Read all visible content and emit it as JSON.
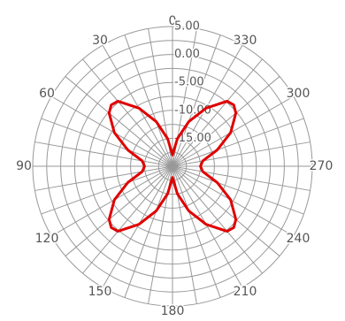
{
  "title": "",
  "chart_data": {
    "type": "polar-line",
    "title_fragment": "",
    "radial_axis": {
      "ticks": [
        "5.00",
        "0.00",
        "-5.00",
        "-10.00",
        "-15.00"
      ],
      "range": [
        -20,
        5
      ]
    },
    "angular_axis": {
      "ticks": [
        "0",
        "30",
        "60",
        "90",
        "120",
        "150",
        "180",
        "210",
        "240",
        "270",
        "300",
        "330"
      ],
      "direction": "counterclockwise",
      "zero_at": "top"
    },
    "grid": true,
    "series": [
      {
        "color": "#e00000",
        "theta": [
          0,
          10,
          20,
          30,
          40,
          45,
          50,
          60,
          70,
          80,
          90,
          100,
          110,
          120,
          130,
          135,
          140,
          150,
          160,
          170,
          180,
          190,
          200,
          210,
          220,
          225,
          230,
          240,
          250,
          260,
          270,
          280,
          290,
          300,
          310,
          315,
          320,
          330,
          340,
          350,
          360
        ],
        "r": [
          -18,
          -15,
          -11.5,
          -8,
          -4.8,
          -4.5,
          -5.2,
          -8,
          -11.5,
          -14.5,
          -15,
          -14.5,
          -11.5,
          -8,
          -5.2,
          -4.5,
          -4.8,
          -8,
          -11.5,
          -15,
          -18,
          -15,
          -11.5,
          -8,
          -4.8,
          -4.5,
          -5.2,
          -8,
          -11.5,
          -14.5,
          -15,
          -14.5,
          -11.5,
          -8,
          -5.2,
          -4.5,
          -4.8,
          -8,
          -11.5,
          -15,
          -18
        ]
      }
    ]
  }
}
